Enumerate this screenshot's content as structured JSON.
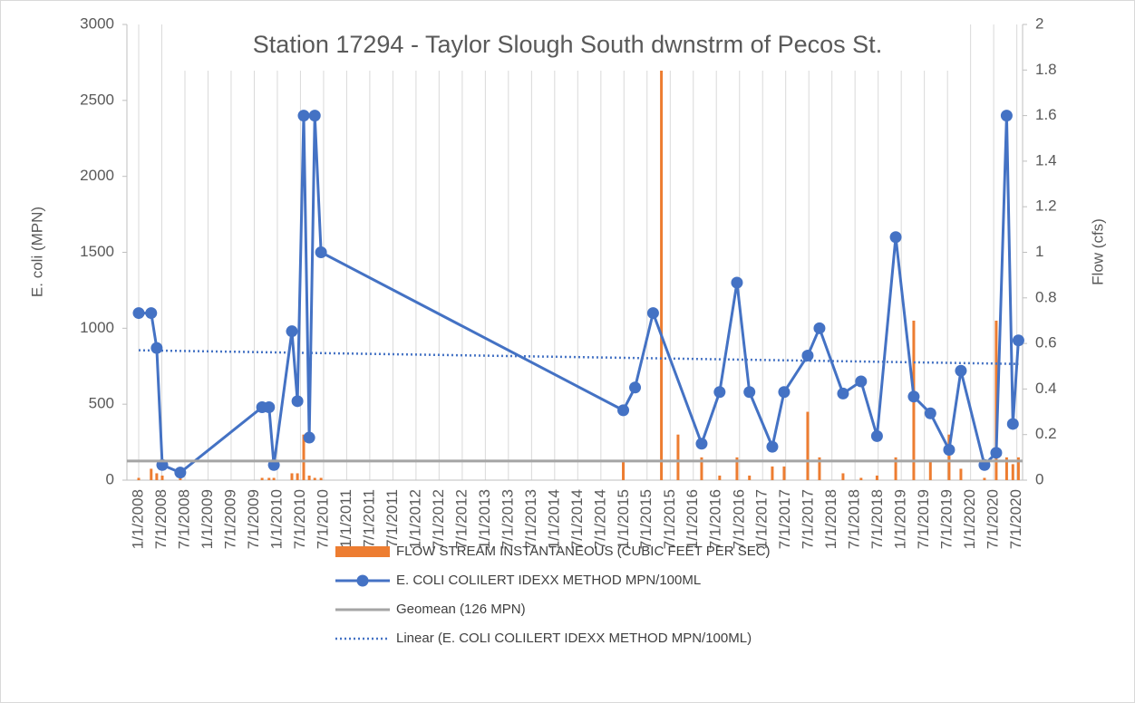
{
  "chart_data": {
    "type": "combo",
    "title": "Station 17294 - Taylor Slough South dwnstrm of Pecos St.",
    "y_label": "E. coli (MPN)",
    "y2_label": "Flow (cfs)",
    "xlim": [
      2007.83,
      2020.75
    ],
    "ylim": [
      0,
      3000
    ],
    "yticks": [
      0,
      500,
      1000,
      1500,
      2000,
      2500,
      3000
    ],
    "y2lim": [
      0,
      2
    ],
    "y2ticks": [
      0,
      0.2,
      0.4,
      0.6,
      0.8,
      1,
      1.2,
      1.4,
      1.6,
      1.8,
      2
    ],
    "xgrid": true,
    "xticks": [
      {
        "value": 2008.0,
        "label": "1/1/2008"
      },
      {
        "value": 2008.333,
        "label": "7/1/2008"
      },
      {
        "value": 2008.667,
        "label": "7/1/2008"
      },
      {
        "value": 2009.0,
        "label": "1/1/2009"
      },
      {
        "value": 2009.333,
        "label": "7/1/2009"
      },
      {
        "value": 2009.667,
        "label": "7/1/2009"
      },
      {
        "value": 2010.0,
        "label": "1/1/2010"
      },
      {
        "value": 2010.333,
        "label": "7/1/2010"
      },
      {
        "value": 2010.667,
        "label": "7/1/2010"
      },
      {
        "value": 2011.0,
        "label": "1/1/2011"
      },
      {
        "value": 2011.333,
        "label": "7/1/2011"
      },
      {
        "value": 2011.667,
        "label": "7/1/2011"
      },
      {
        "value": 2012.0,
        "label": "1/1/2012"
      },
      {
        "value": 2012.333,
        "label": "7/1/2012"
      },
      {
        "value": 2012.667,
        "label": "7/1/2012"
      },
      {
        "value": 2013.0,
        "label": "1/1/2013"
      },
      {
        "value": 2013.333,
        "label": "7/1/2013"
      },
      {
        "value": 2013.667,
        "label": "7/1/2013"
      },
      {
        "value": 2014.0,
        "label": "1/1/2014"
      },
      {
        "value": 2014.333,
        "label": "7/1/2014"
      },
      {
        "value": 2014.667,
        "label": "7/1/2014"
      },
      {
        "value": 2015.0,
        "label": "1/1/2015"
      },
      {
        "value": 2015.333,
        "label": "7/1/2015"
      },
      {
        "value": 2015.667,
        "label": "7/1/2015"
      },
      {
        "value": 2016.0,
        "label": "1/1/2016"
      },
      {
        "value": 2016.333,
        "label": "7/1/2016"
      },
      {
        "value": 2016.667,
        "label": "7/1/2016"
      },
      {
        "value": 2017.0,
        "label": "1/1/2017"
      },
      {
        "value": 2017.333,
        "label": "7/1/2017"
      },
      {
        "value": 2017.667,
        "label": "7/1/2017"
      },
      {
        "value": 2018.0,
        "label": "1/1/2018"
      },
      {
        "value": 2018.333,
        "label": "7/1/2018"
      },
      {
        "value": 2018.667,
        "label": "7/1/2018"
      },
      {
        "value": 2019.0,
        "label": "1/1/2019"
      },
      {
        "value": 2019.333,
        "label": "7/1/2019"
      },
      {
        "value": 2019.667,
        "label": "7/1/2019"
      },
      {
        "value": 2020.0,
        "label": "1/1/2020"
      },
      {
        "value": 2020.333,
        "label": "7/1/2020"
      },
      {
        "value": 2020.667,
        "label": "7/1/2020"
      }
    ],
    "series": [
      {
        "name": "FLOW STREAM INSTANTANEOUS (CUBIC FEET PER SEC)",
        "kind": "bar",
        "axis": "y2",
        "color": "#ed7d31",
        "x": [
          2008.0,
          2008.18,
          2008.26,
          2008.34,
          2008.6,
          2009.78,
          2009.88,
          2009.95,
          2010.21,
          2010.29,
          2010.38,
          2010.46,
          2010.54,
          2010.63,
          2014.99,
          2015.54,
          2015.78,
          2016.12,
          2016.38,
          2016.63,
          2016.81,
          2017.14,
          2017.31,
          2017.65,
          2017.82,
          2018.16,
          2018.42,
          2018.65,
          2018.92,
          2019.18,
          2019.42,
          2019.69,
          2019.86,
          2020.2,
          2020.37,
          2020.52,
          2020.61,
          2020.69
        ],
        "values": [
          0.01,
          0.05,
          0.03,
          0.02,
          0.01,
          0.01,
          0.01,
          0.01,
          0.03,
          0.03,
          0.2,
          0.02,
          0.01,
          0.01,
          0.08,
          1.82,
          0.2,
          0.1,
          0.02,
          0.1,
          0.02,
          0.06,
          0.06,
          0.3,
          0.1,
          0.03,
          0.01,
          0.02,
          0.1,
          0.7,
          0.08,
          0.2,
          0.05,
          0.01,
          0.7,
          0.1,
          0.07,
          0.1
        ]
      },
      {
        "name": "E. COLI COLILERT IDEXX METHOD MPN/100ML",
        "kind": "line",
        "axis": "y",
        "color": "#4472c4",
        "markers": true,
        "x": [
          2008.0,
          2008.18,
          2008.26,
          2008.34,
          2008.6,
          2009.78,
          2009.88,
          2009.95,
          2010.21,
          2010.29,
          2010.38,
          2010.46,
          2010.54,
          2010.63,
          2014.99,
          2015.16,
          2015.42,
          2016.12,
          2016.38,
          2016.63,
          2016.81,
          2017.14,
          2017.31,
          2017.65,
          2017.82,
          2018.16,
          2018.42,
          2018.65,
          2018.92,
          2019.18,
          2019.42,
          2019.69,
          2019.86,
          2020.2,
          2020.37,
          2020.52,
          2020.61,
          2020.69
        ],
        "values": [
          1100,
          1100,
          870,
          100,
          50,
          480,
          480,
          100,
          980,
          520,
          2400,
          280,
          2400,
          1500,
          460,
          610,
          1100,
          240,
          580,
          1300,
          580,
          220,
          580,
          820,
          1000,
          570,
          650,
          290,
          1600,
          550,
          440,
          200,
          720,
          100,
          180,
          2400,
          370,
          920
        ]
      },
      {
        "name": "Geomean (126 MPN)",
        "kind": "hline",
        "axis": "y",
        "color": "#a5a5a5",
        "values": [
          126
        ]
      },
      {
        "name": "Linear (E. COLI COLILERT IDEXX METHOD MPN/100ML)",
        "kind": "trend",
        "axis": "y",
        "color": "#4472c4",
        "dash": "dotted",
        "x": [
          2008.0,
          2020.69
        ],
        "values": [
          855,
          765
        ]
      }
    ]
  }
}
